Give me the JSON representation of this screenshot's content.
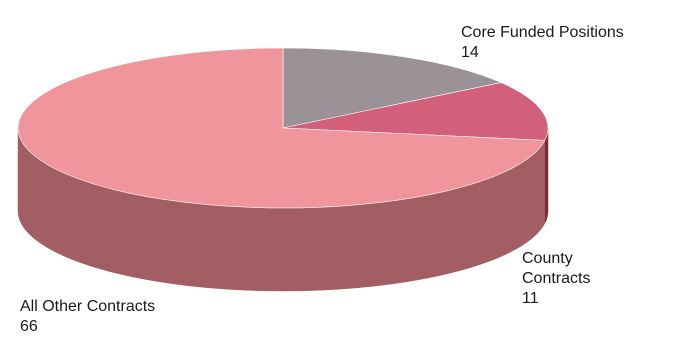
{
  "chart_data": {
    "type": "pie",
    "style": "3d",
    "slices": [
      {
        "label": "Core Funded Positions",
        "value": 14,
        "top_color": "#9a9296",
        "side_color": "#3f3c3f"
      },
      {
        "label": "County Contracts",
        "value": 11,
        "top_color": "#d2607a",
        "side_color": "#7b2a3a"
      },
      {
        "label": "All Other Contracts",
        "value": 66,
        "top_color": "#f0959c",
        "side_color": "#a25e62"
      }
    ],
    "labels": {
      "core": {
        "name": "Core Funded Positions",
        "value": "14"
      },
      "county": {
        "name_line1": "County",
        "name_line2": "Contracts",
        "value": "11"
      },
      "other": {
        "name": "All Other Contracts",
        "value": "66"
      }
    }
  }
}
